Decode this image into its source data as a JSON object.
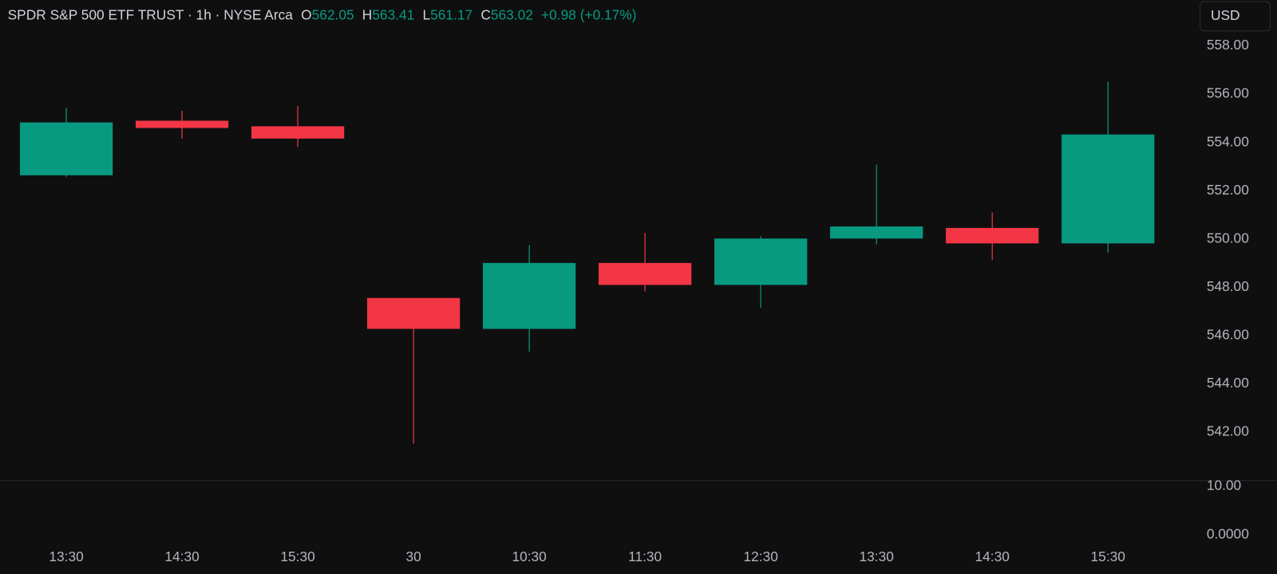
{
  "chart_data": {
    "type": "candlestick",
    "header": {
      "symbol": "SPDR S&P 500 ETF TRUST · 1h · NYSE Arca",
      "open_label": "O",
      "open": 562.05,
      "high_label": "H",
      "high": 563.41,
      "low_label": "L",
      "low": 561.17,
      "close_label": "C",
      "close": 563.02,
      "change": "+0.98 (+0.17%)"
    },
    "currency": "USD",
    "categories": [
      "13:30",
      "14:30",
      "15:30",
      "30",
      "10:30",
      "11:30",
      "12:30",
      "13:30",
      "14:30",
      "15:30"
    ],
    "open": [
      552.64,
      554.9,
      554.67,
      547.56,
      546.28,
      549.01,
      548.1,
      550.02,
      550.46,
      549.82
    ],
    "high": [
      555.44,
      555.31,
      555.51,
      547.56,
      549.75,
      550.25,
      550.12,
      553.08,
      551.1,
      556.52
    ],
    "low": [
      552.58,
      554.16,
      553.82,
      541.53,
      545.34,
      547.83,
      547.15,
      549.78,
      549.14,
      549.44
    ],
    "close": [
      554.83,
      554.6,
      554.16,
      546.28,
      549.01,
      548.1,
      550.02,
      550.52,
      549.82,
      554.33
    ],
    "up_color": "#089981",
    "down_color": "#f23645",
    "ylim": [
      540.0,
      559.9
    ],
    "yticks": [
      {
        "value": 542,
        "label": "542.00"
      },
      {
        "value": 544,
        "label": "544.00"
      },
      {
        "value": 546,
        "label": "546.00"
      },
      {
        "value": 548,
        "label": "548.00"
      },
      {
        "value": 550,
        "label": "550.00"
      },
      {
        "value": 552,
        "label": "552.00"
      },
      {
        "value": 554,
        "label": "554.00"
      },
      {
        "value": 556,
        "label": "556.00"
      },
      {
        "value": 558,
        "label": "558.00"
      }
    ],
    "volume_ylim": [
      -2.2,
      11.2
    ],
    "volume_yticks": [
      {
        "value": 0,
        "label": "0.0000"
      },
      {
        "value": 10,
        "label": "10.00"
      }
    ]
  }
}
